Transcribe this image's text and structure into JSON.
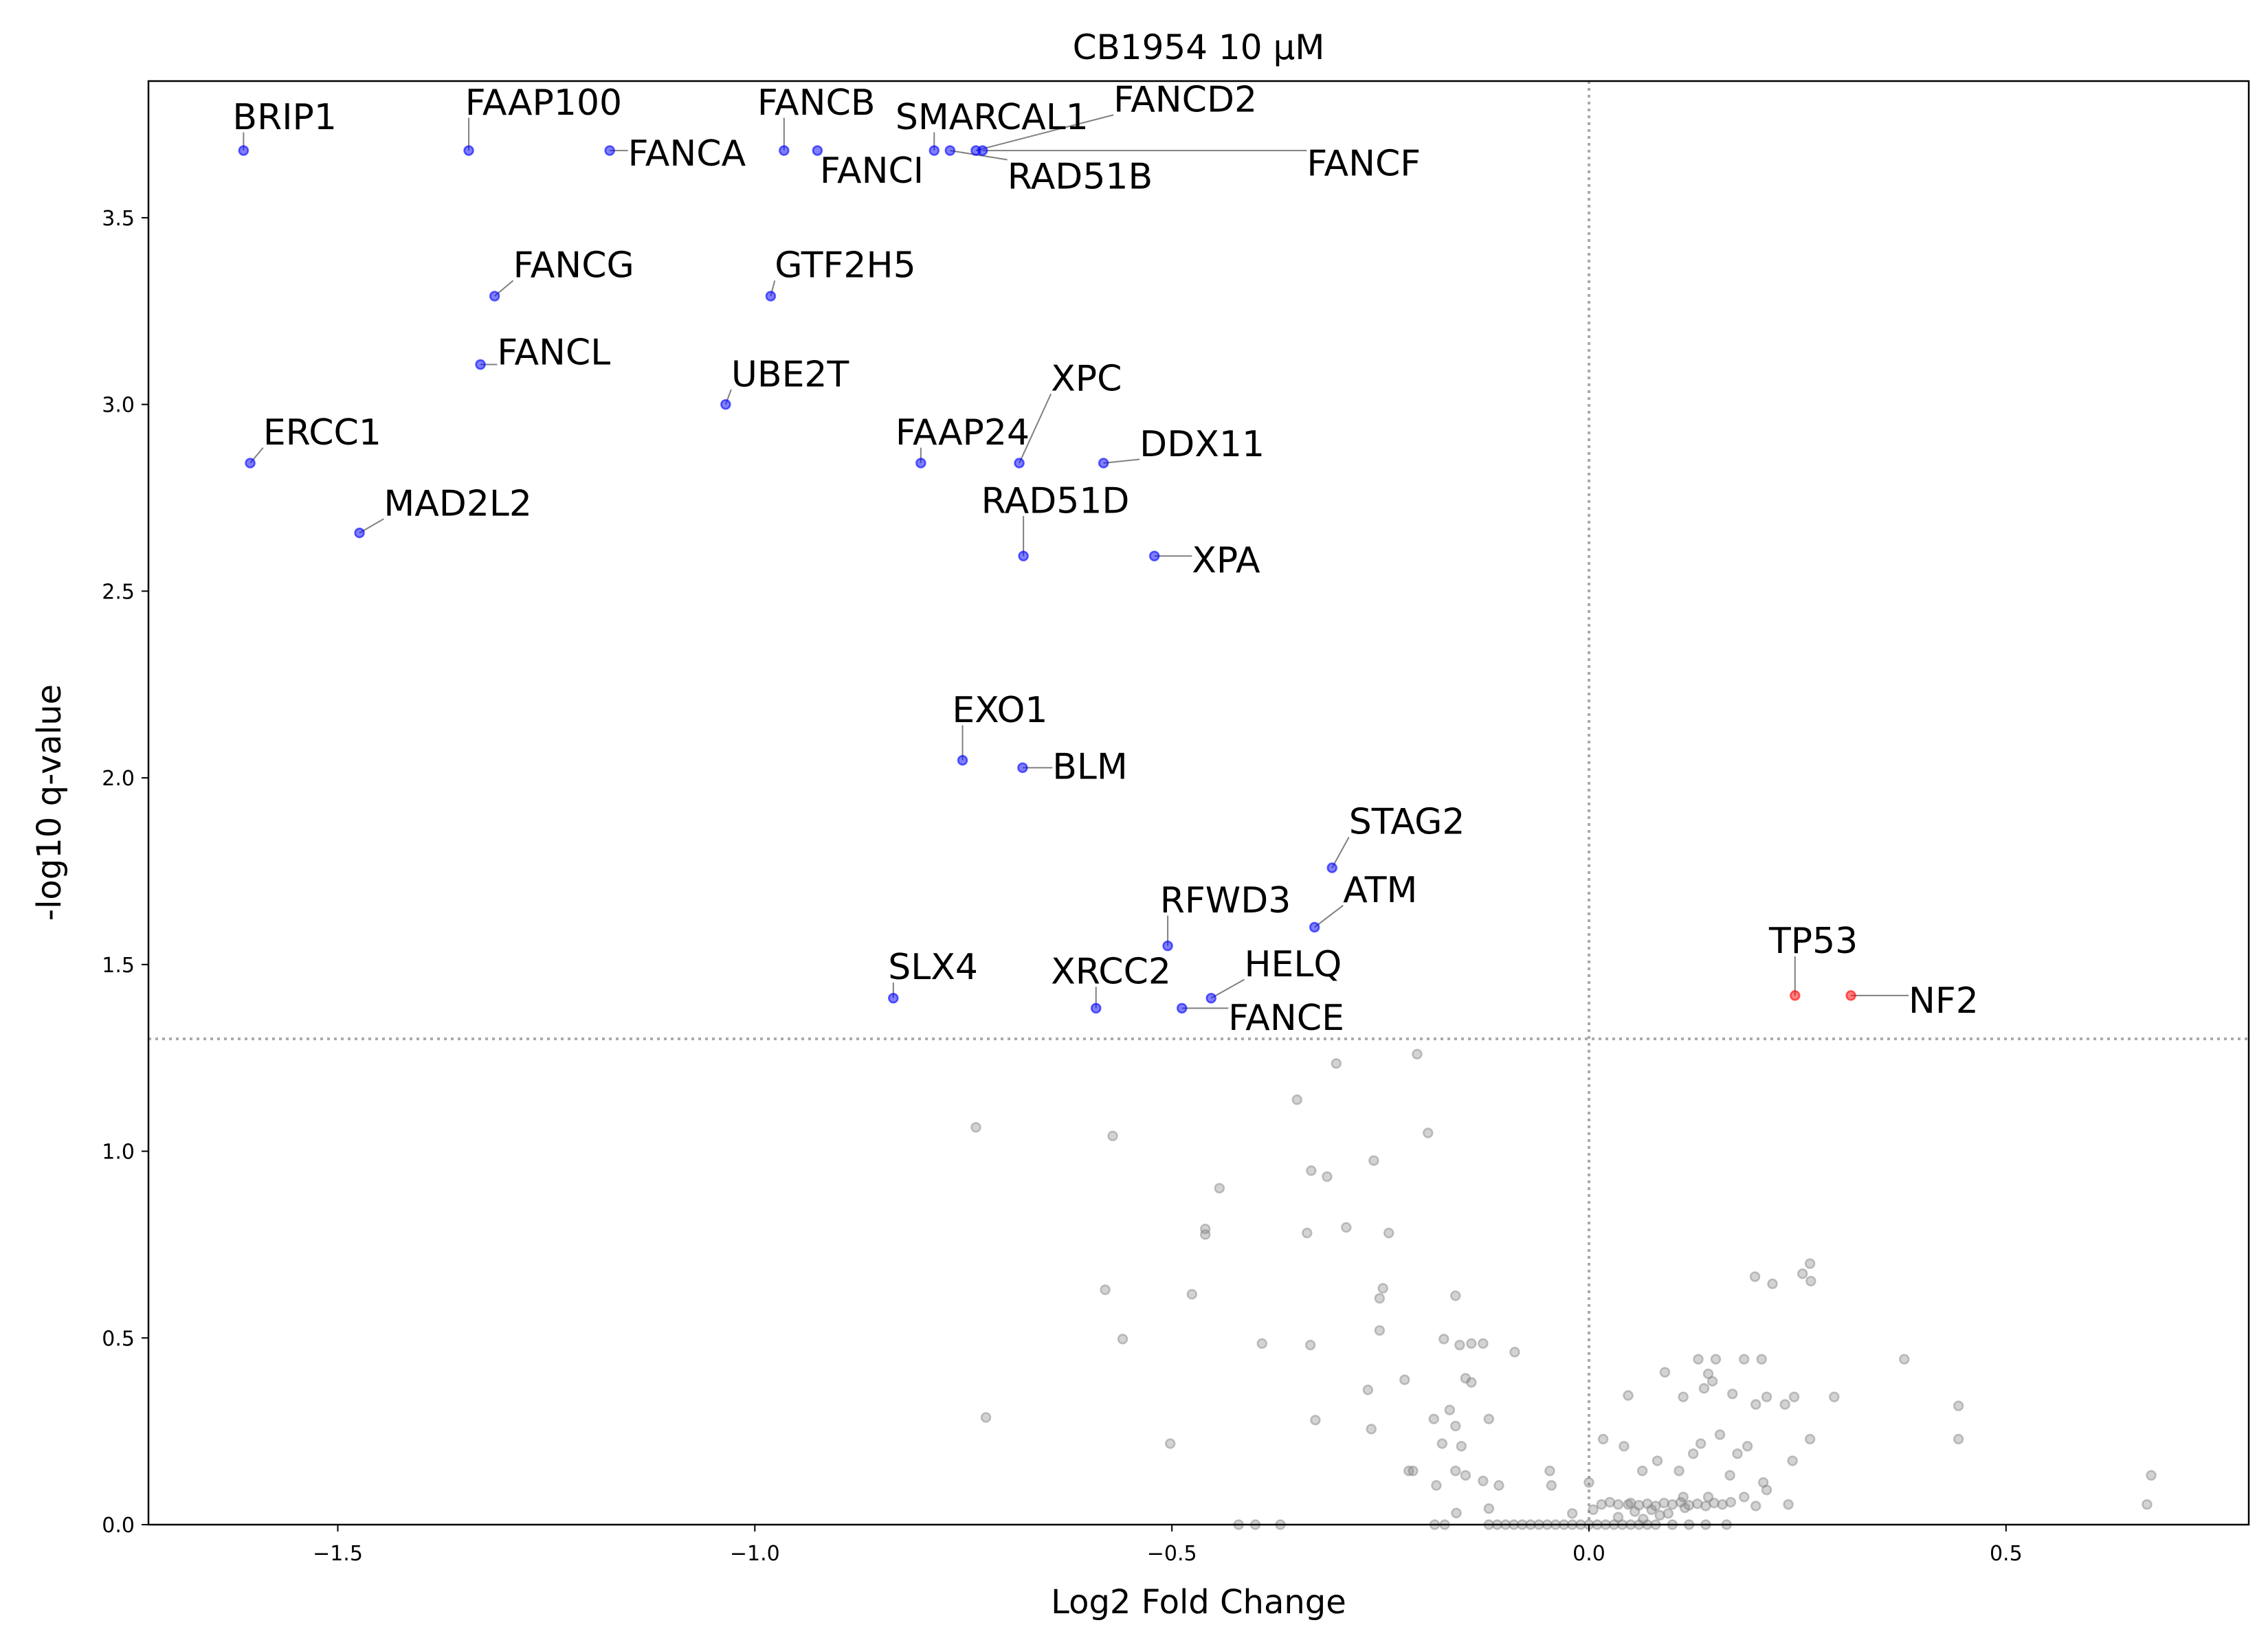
{
  "chart_data": {
    "type": "scatter",
    "title": "CB1954 10 µM",
    "xlabel": "Log2 Fold Change",
    "ylabel": "-log10 q-value",
    "xlim": [
      -1.727,
      0.791
    ],
    "ylim": [
      0,
      3.866
    ],
    "xticks": [
      -1.5,
      -1.0,
      -0.5,
      0.0,
      0.5
    ],
    "xtick_labels": [
      "−1.5",
      "−1.0",
      "−0.5",
      "0.0",
      "0.5"
    ],
    "yticks": [
      0.0,
      0.5,
      1.0,
      1.5,
      2.0,
      2.5,
      3.0,
      3.5
    ],
    "ytick_labels": [
      "0.0",
      "0.5",
      "1.0",
      "1.5",
      "2.0",
      "2.5",
      "3.0",
      "3.5"
    ],
    "grid": false,
    "reference_lines": {
      "horizontal_y": 1.301,
      "vertical_x": 0.0,
      "style": "dotted",
      "color": "#aaaaaa"
    },
    "colors": {
      "down": "#0000ff",
      "up": "#ff0000",
      "not_significant": "#808080"
    },
    "labeled_points": [
      {
        "label": "BRIP1",
        "x": -1.613,
        "y": 3.68,
        "group": "down"
      },
      {
        "label": "FAAP100",
        "x": -1.343,
        "y": 3.68,
        "group": "down"
      },
      {
        "label": "FANCA",
        "x": -1.174,
        "y": 3.68,
        "group": "down"
      },
      {
        "label": "FANCB",
        "x": -0.965,
        "y": 3.68,
        "group": "down"
      },
      {
        "label": "FANCI",
        "x": -0.925,
        "y": 3.68,
        "group": "down"
      },
      {
        "label": "SMARCAL1",
        "x": -0.785,
        "y": 3.68,
        "group": "down"
      },
      {
        "label": "RAD51B",
        "x": -0.766,
        "y": 3.68,
        "group": "down"
      },
      {
        "label": "FANCD2",
        "x": -0.735,
        "y": 3.68,
        "group": "down"
      },
      {
        "label": "FANCF",
        "x": -0.727,
        "y": 3.68,
        "group": "down"
      },
      {
        "label": "FANCG",
        "x": -1.312,
        "y": 3.29,
        "group": "down"
      },
      {
        "label": "GTF2H5",
        "x": -0.981,
        "y": 3.29,
        "group": "down"
      },
      {
        "label": "FANCL",
        "x": -1.329,
        "y": 3.107,
        "group": "down"
      },
      {
        "label": "UBE2T",
        "x": -1.035,
        "y": 3.0,
        "group": "down"
      },
      {
        "label": "ERCC1",
        "x": -1.605,
        "y": 2.843,
        "group": "down"
      },
      {
        "label": "FAAP24",
        "x": -0.801,
        "y": 2.843,
        "group": "down"
      },
      {
        "label": "XPC",
        "x": -0.683,
        "y": 2.843,
        "group": "down"
      },
      {
        "label": "DDX11",
        "x": -0.582,
        "y": 2.843,
        "group": "down"
      },
      {
        "label": "MAD2L2",
        "x": -1.474,
        "y": 2.656,
        "group": "down"
      },
      {
        "label": "RAD51D",
        "x": -0.678,
        "y": 2.594,
        "group": "down"
      },
      {
        "label": "XPA",
        "x": -0.521,
        "y": 2.594,
        "group": "down"
      },
      {
        "label": "EXO1",
        "x": -0.751,
        "y": 2.047,
        "group": "down"
      },
      {
        "label": "BLM",
        "x": -0.679,
        "y": 2.027,
        "group": "down"
      },
      {
        "label": "STAG2",
        "x": -0.308,
        "y": 1.759,
        "group": "down"
      },
      {
        "label": "ATM",
        "x": -0.329,
        "y": 1.6,
        "group": "down"
      },
      {
        "label": "RFWD3",
        "x": -0.505,
        "y": 1.55,
        "group": "down"
      },
      {
        "label": "HELQ",
        "x": -0.453,
        "y": 1.41,
        "group": "down"
      },
      {
        "label": "SLX4",
        "x": -0.834,
        "y": 1.41,
        "group": "down"
      },
      {
        "label": "XRCC2",
        "x": -0.591,
        "y": 1.383,
        "group": "down"
      },
      {
        "label": "FANCE",
        "x": -0.488,
        "y": 1.383,
        "group": "down"
      },
      {
        "label": "TP53",
        "x": 0.247,
        "y": 1.417,
        "group": "up"
      },
      {
        "label": "NF2",
        "x": 0.314,
        "y": 1.417,
        "group": "up"
      }
    ],
    "not_significant_points": [
      [
        -0.206,
        1.26
      ],
      [
        -0.303,
        1.235
      ],
      [
        -0.735,
        1.064
      ],
      [
        -0.35,
        1.138
      ],
      [
        -0.571,
        1.041
      ],
      [
        -0.193,
        1.049
      ],
      [
        -0.258,
        0.975
      ],
      [
        -0.333,
        0.948
      ],
      [
        -0.314,
        0.932
      ],
      [
        -0.443,
        0.901
      ],
      [
        -0.46,
        0.792
      ],
      [
        -0.46,
        0.777
      ],
      [
        -0.338,
        0.781
      ],
      [
        -0.291,
        0.796
      ],
      [
        -0.24,
        0.781
      ],
      [
        -0.58,
        0.629
      ],
      [
        -0.476,
        0.617
      ],
      [
        -0.247,
        0.633
      ],
      [
        -0.251,
        0.606
      ],
      [
        -0.16,
        0.613
      ],
      [
        -0.559,
        0.497
      ],
      [
        -0.392,
        0.485
      ],
      [
        -0.334,
        0.481
      ],
      [
        -0.251,
        0.52
      ],
      [
        -0.174,
        0.497
      ],
      [
        -0.155,
        0.481
      ],
      [
        -0.141,
        0.485
      ],
      [
        -0.127,
        0.485
      ],
      [
        -0.089,
        0.462
      ],
      [
        -0.265,
        0.361
      ],
      [
        -0.221,
        0.388
      ],
      [
        -0.148,
        0.392
      ],
      [
        -0.141,
        0.381
      ],
      [
        -0.723,
        0.287
      ],
      [
        -0.328,
        0.28
      ],
      [
        -0.261,
        0.256
      ],
      [
        -0.186,
        0.283
      ],
      [
        -0.167,
        0.307
      ],
      [
        -0.16,
        0.264
      ],
      [
        -0.12,
        0.283
      ],
      [
        -0.502,
        0.217
      ],
      [
        -0.176,
        0.217
      ],
      [
        -0.153,
        0.21
      ],
      [
        -0.216,
        0.144
      ],
      [
        -0.211,
        0.144
      ],
      [
        -0.16,
        0.144
      ],
      [
        -0.148,
        0.132
      ],
      [
        -0.183,
        0.105
      ],
      [
        -0.127,
        0.117
      ],
      [
        -0.108,
        0.105
      ],
      [
        -0.047,
        0.144
      ],
      [
        -0.045,
        0.105
      ],
      [
        -0.12,
        0.043
      ],
      [
        -0.159,
        0.031
      ],
      [
        -0.42,
        0.0
      ],
      [
        -0.4,
        0.0
      ],
      [
        -0.37,
        0.0
      ],
      [
        -0.185,
        0.0
      ],
      [
        -0.173,
        0.0
      ],
      [
        -0.12,
        0.0
      ],
      [
        -0.11,
        0.0
      ],
      [
        -0.1,
        0.0
      ],
      [
        -0.09,
        0.0
      ],
      [
        -0.08,
        0.0
      ],
      [
        -0.07,
        0.0
      ],
      [
        -0.06,
        0.0
      ],
      [
        -0.05,
        0.0
      ],
      [
        -0.04,
        0.0
      ],
      [
        -0.03,
        0.0
      ],
      [
        -0.02,
        0.0
      ],
      [
        -0.01,
        0.0
      ],
      [
        0.0,
        0.0
      ],
      [
        0.01,
        0.0
      ],
      [
        0.02,
        0.0
      ],
      [
        0.03,
        0.0
      ],
      [
        0.04,
        0.0
      ],
      [
        0.05,
        0.0
      ],
      [
        0.06,
        0.0
      ],
      [
        0.07,
        0.0
      ],
      [
        0.08,
        0.0
      ],
      [
        0.1,
        0.0
      ],
      [
        0.12,
        0.0
      ],
      [
        0.14,
        0.0
      ],
      [
        0.165,
        0.0
      ],
      [
        0.0,
        0.113
      ],
      [
        0.017,
        0.229
      ],
      [
        0.042,
        0.21
      ],
      [
        0.047,
        0.346
      ],
      [
        0.091,
        0.408
      ],
      [
        0.131,
        0.443
      ],
      [
        0.138,
        0.365
      ],
      [
        0.152,
        0.443
      ],
      [
        0.186,
        0.443
      ],
      [
        0.207,
        0.443
      ],
      [
        0.113,
        0.342
      ],
      [
        0.143,
        0.404
      ],
      [
        0.148,
        0.384
      ],
      [
        0.172,
        0.35
      ],
      [
        0.2,
        0.322
      ],
      [
        0.213,
        0.342
      ],
      [
        0.235,
        0.322
      ],
      [
        0.246,
        0.342
      ],
      [
        0.265,
        0.229
      ],
      [
        0.199,
        0.664
      ],
      [
        0.22,
        0.645
      ],
      [
        0.256,
        0.672
      ],
      [
        0.265,
        0.699
      ],
      [
        0.266,
        0.652
      ],
      [
        0.294,
        0.342
      ],
      [
        0.378,
        0.443
      ],
      [
        0.443,
        0.318
      ],
      [
        0.443,
        0.229
      ],
      [
        0.674,
        0.132
      ],
      [
        0.669,
        0.054
      ],
      [
        0.244,
        0.171
      ],
      [
        0.209,
        0.113
      ],
      [
        0.169,
        0.132
      ],
      [
        0.125,
        0.19
      ],
      [
        0.134,
        0.217
      ],
      [
        0.082,
        0.171
      ],
      [
        0.113,
        0.074
      ],
      [
        0.143,
        0.074
      ],
      [
        0.186,
        0.074
      ],
      [
        0.213,
        0.093
      ],
      [
        0.239,
        0.054
      ],
      [
        0.157,
        0.241
      ],
      [
        0.178,
        0.19
      ],
      [
        0.19,
        0.21
      ],
      [
        0.108,
        0.144
      ],
      [
        0.064,
        0.144
      ],
      [
        0.047,
        0.054
      ],
      [
        0.015,
        0.054
      ],
      [
        0.025,
        0.06
      ],
      [
        0.035,
        0.054
      ],
      [
        0.05,
        0.058
      ],
      [
        0.06,
        0.052
      ],
      [
        0.07,
        0.056
      ],
      [
        0.08,
        0.05
      ],
      [
        0.09,
        0.058
      ],
      [
        0.1,
        0.054
      ],
      [
        0.11,
        0.06
      ],
      [
        0.12,
        0.052
      ],
      [
        0.13,
        0.056
      ],
      [
        0.14,
        0.05
      ],
      [
        0.15,
        0.058
      ],
      [
        0.16,
        0.054
      ],
      [
        0.17,
        0.06
      ],
      [
        0.055,
        0.035
      ],
      [
        0.075,
        0.04
      ],
      [
        0.095,
        0.03
      ],
      [
        0.115,
        0.045
      ],
      [
        0.035,
        0.02
      ],
      [
        0.065,
        0.015
      ],
      [
        0.085,
        0.025
      ],
      [
        -0.02,
        0.03
      ],
      [
        0.005,
        0.04
      ],
      [
        0.2,
        0.05
      ]
    ]
  }
}
